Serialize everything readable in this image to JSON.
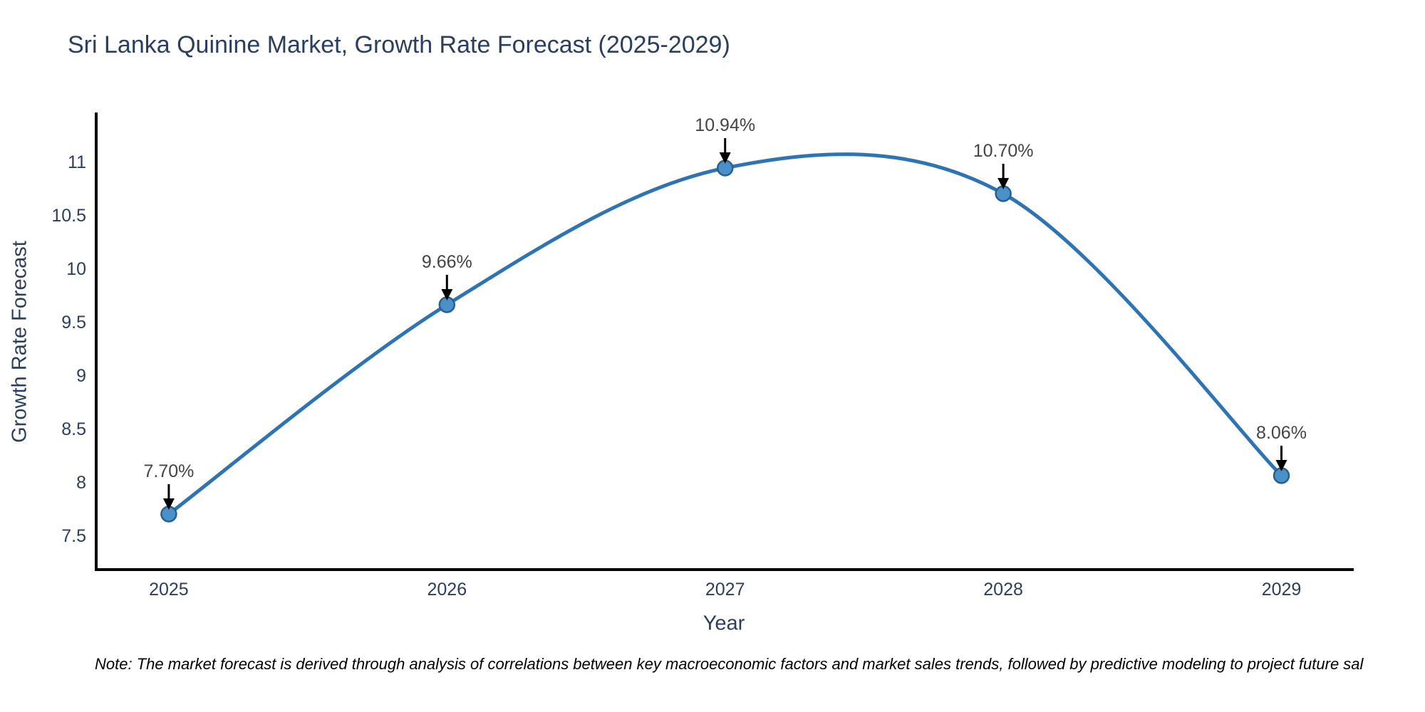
{
  "title": "Sri Lanka Quinine Market, Growth Rate Forecast (2025-2029)",
  "note": "Note: The market forecast is derived through analysis of correlations between key macroeconomic factors and market sales trends, followed by predictive modeling to project future sal",
  "chart_data": {
    "type": "line",
    "line_shape": "spline",
    "title": "Sri Lanka Quinine Market, Growth Rate Forecast (2025-2029)",
    "xlabel": "Year",
    "ylabel": "Growth Rate Forecast",
    "x": [
      2025,
      2026,
      2027,
      2028,
      2029
    ],
    "values": [
      7.7,
      9.66,
      10.94,
      10.7,
      8.06
    ],
    "point_labels": [
      "7.70%",
      "9.66%",
      "10.94%",
      "10.70%",
      "8.06%"
    ],
    "x_tick_labels": [
      "2025",
      "2026",
      "2027",
      "2028",
      "2029"
    ],
    "y_ticks": [
      7.5,
      8,
      8.5,
      9,
      9.5,
      10,
      10.5,
      11
    ],
    "y_tick_labels": [
      "7.5",
      "8",
      "8.5",
      "9",
      "9.5",
      "10",
      "10.5",
      "11"
    ],
    "xlim": [
      2024.739,
      2029.255
    ],
    "ylim": [
      7.18,
      11.447
    ],
    "grid": false,
    "legend": "none",
    "colors": {
      "line": "#2e74b5",
      "marker_fill": "#4a90c9",
      "marker_edge": "#275f8e",
      "annotation_text": "#444444",
      "arrow": "#000000",
      "axis_line": "#000000",
      "tick_text": "#2a3f5f",
      "title_text": "#2a3f5f",
      "note_text": "#000000",
      "background": "#ffffff"
    }
  }
}
